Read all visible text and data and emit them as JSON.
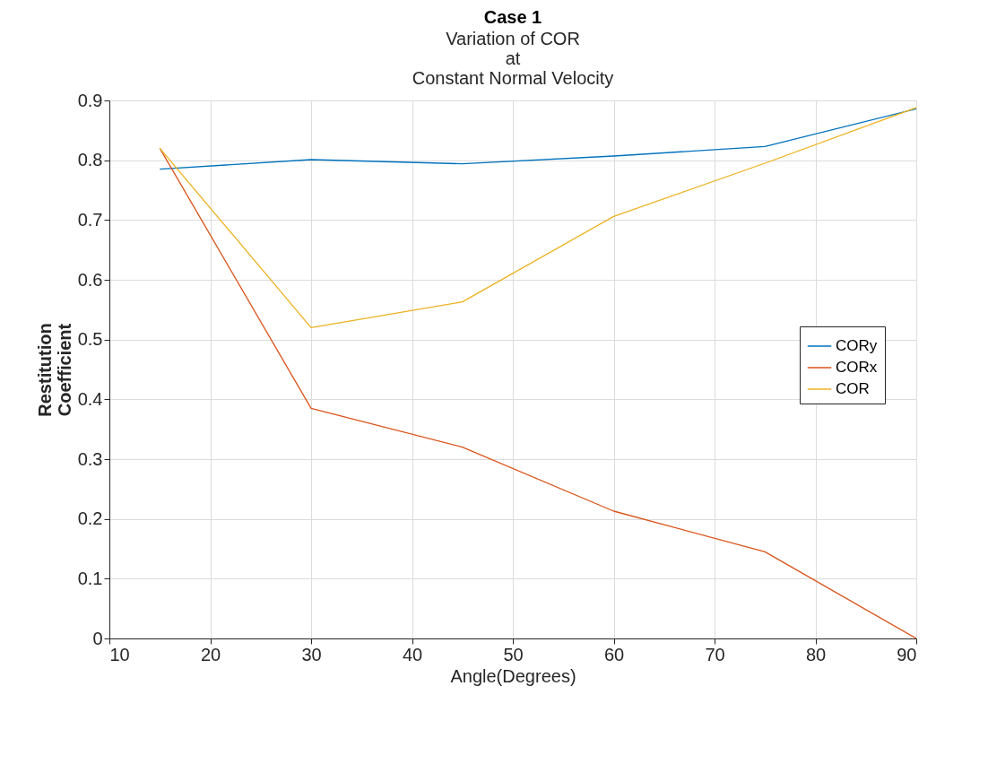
{
  "chart_data": {
    "type": "line",
    "title": "Case 1",
    "subtitle": "Variation of COR\nat\nConstant Normal Velocity",
    "xlabel": "Angle(Degrees)",
    "ylabel": "Restitution\nCoefficient",
    "x": [
      15,
      30,
      45,
      60,
      75,
      90
    ],
    "series": [
      {
        "name": "CORy",
        "color": "#0072bd",
        "values": [
          0.785,
          0.801,
          0.794,
          0.807,
          0.823,
          0.886
        ]
      },
      {
        "name": "CORx",
        "color": "#d95319",
        "values": [
          0.82,
          0.385,
          0.32,
          0.213,
          0.145,
          0.0
        ]
      },
      {
        "name": "COR",
        "color": "#edb120",
        "values": [
          0.82,
          0.52,
          0.563,
          0.706,
          0.795,
          0.888
        ]
      }
    ],
    "xlim": [
      10,
      90
    ],
    "xticks": [
      10,
      20,
      30,
      40,
      50,
      60,
      70,
      80,
      90
    ],
    "ylim": [
      0,
      0.9
    ],
    "yticks": [
      0,
      0.1,
      0.2,
      0.3,
      0.4,
      0.5,
      0.6,
      0.7,
      0.8,
      0.9
    ],
    "grid": true,
    "legend": "right",
    "marker": "none",
    "line_style": "solid"
  }
}
